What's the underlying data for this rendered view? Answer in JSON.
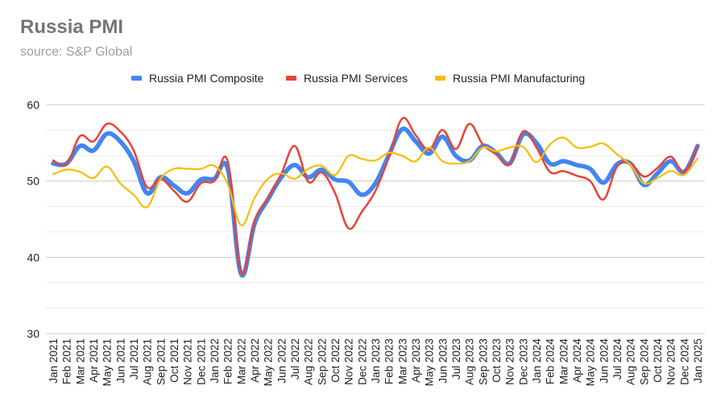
{
  "header": {
    "title": "Russia PMI",
    "subtitle": "source: S&P Global"
  },
  "chart_data": {
    "type": "line",
    "title": "Russia PMI",
    "subtitle": "source: S&P Global",
    "xlabel": "",
    "ylabel": "",
    "ylim": [
      30,
      60
    ],
    "yticks": [
      30,
      40,
      50,
      60
    ],
    "grid": true,
    "legend_position": "top-center",
    "categories": [
      "Jan 2021",
      "Feb 2021",
      "Mar 2021",
      "Apr 2021",
      "May 2021",
      "Jun 2021",
      "Jul 2021",
      "Aug 2021",
      "Sep 2021",
      "Oct 2021",
      "Nov 2021",
      "Dec 2021",
      "Jan 2022",
      "Feb 2022",
      "Mar 2022",
      "Apr 2022",
      "May 2022",
      "Jun 2022",
      "Jul 2022",
      "Aug 2022",
      "Sep 2022",
      "Oct 2022",
      "Nov 2022",
      "Dec 2022",
      "Jan 2023",
      "Feb 2023",
      "Mar 2023",
      "Apr 2023",
      "May 2023",
      "Jun 2023",
      "Jul 2023",
      "Aug 2023",
      "Sep 2023",
      "Oct 2023",
      "Nov 2023",
      "Dec 2023",
      "Jan 2024",
      "Feb 2024",
      "Mar 2024",
      "Apr 2024",
      "May 2024",
      "Jun 2024",
      "Jul 2024",
      "Aug 2024",
      "Sep 2024",
      "Oct 2024",
      "Nov 2024",
      "Dec 2024",
      "Jan 2025"
    ],
    "series": [
      {
        "name": "Russia PMI Composite",
        "color": "#4285F4",
        "values": [
          52.3,
          52.3,
          54.6,
          54.0,
          56.2,
          55.2,
          52.6,
          48.4,
          50.5,
          49.4,
          48.4,
          50.2,
          50.3,
          51.6,
          37.8,
          44.4,
          47.6,
          50.5,
          52.1,
          50.5,
          51.5,
          50.2,
          49.9,
          48.2,
          49.7,
          53.4,
          56.8,
          55.2,
          53.6,
          55.8,
          53.3,
          52.7,
          54.6,
          53.7,
          52.3,
          56.1,
          55.0,
          52.3,
          52.6,
          52.1,
          51.6,
          49.8,
          52.2,
          52.3,
          49.5,
          51.0,
          52.6,
          51.2,
          54.6
        ]
      },
      {
        "name": "Russia PMI Services",
        "color": "#EA4335",
        "values": [
          52.7,
          52.2,
          55.9,
          55.2,
          57.5,
          56.5,
          54.0,
          49.2,
          50.3,
          48.7,
          47.3,
          49.7,
          50.0,
          52.6,
          38.0,
          44.8,
          47.8,
          51.0,
          54.6,
          49.9,
          51.1,
          48.4,
          43.8,
          46.0,
          48.7,
          53.1,
          58.2,
          56.0,
          54.1,
          56.7,
          54.2,
          57.5,
          54.8,
          53.5,
          52.2,
          56.5,
          54.4,
          51.2,
          51.3,
          50.7,
          50.0,
          47.6,
          51.9,
          52.3,
          50.6,
          51.7,
          53.2,
          51.2,
          54.6
        ]
      },
      {
        "name": "Russia PMI Manufacturing",
        "color": "#FBBC04",
        "values": [
          50.9,
          51.5,
          51.2,
          50.4,
          51.9,
          49.7,
          48.2,
          46.6,
          50.3,
          51.6,
          51.6,
          51.6,
          52.0,
          49.6,
          44.2,
          47.8,
          50.3,
          51.0,
          50.3,
          51.6,
          52.0,
          50.8,
          53.3,
          52.9,
          52.7,
          53.7,
          53.3,
          52.6,
          54.4,
          52.6,
          52.3,
          52.6,
          54.4,
          53.9,
          54.4,
          54.5,
          52.5,
          54.8,
          55.7,
          54.4,
          54.5,
          54.9,
          53.5,
          52.1,
          49.7,
          50.4,
          51.3,
          50.8,
          53.0
        ]
      }
    ]
  }
}
